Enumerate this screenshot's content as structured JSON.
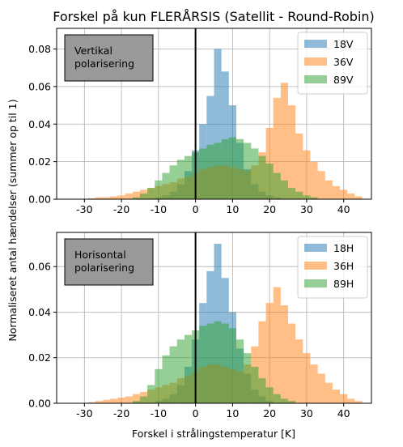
{
  "figure": {
    "title": "Forskel på kun FLERÅRSIS (Satellit - Round-Robin)",
    "shared_ylabel": "Normaliseret antal hændelser (summer op til 1)",
    "shared_xlabel": "Forskel i strålingstemperatur [K]"
  },
  "colors": {
    "c1": "#1f77b4",
    "c2": "#ff7f0e",
    "c3": "#2ca02c",
    "bar_alpha": 0.5,
    "annotation_box": "#999999"
  },
  "chart_data": [
    {
      "type": "bar",
      "histogram": true,
      "annotation": [
        "Vertikal",
        "polarisering"
      ],
      "legend_position": "top-right",
      "grid": true,
      "xlim": [
        -37.5,
        47.5
      ],
      "ylim": [
        0,
        0.091
      ],
      "xticks": [
        -30,
        -20,
        -10,
        0,
        10,
        20,
        30,
        40
      ],
      "yticks": [
        0.0,
        0.02,
        0.04,
        0.06,
        0.08
      ],
      "ytick_labels": [
        "0.00",
        "0.02",
        "0.04",
        "0.06",
        "0.08"
      ],
      "vline_x": 0,
      "bins": [
        -35,
        -33,
        -31,
        -29,
        -27,
        -25,
        -23,
        -21,
        -19,
        -17,
        -15,
        -13,
        -11,
        -9,
        -7,
        -5,
        -3,
        -1,
        1,
        3,
        5,
        7,
        9,
        11,
        13,
        15,
        17,
        19,
        21,
        23,
        25,
        27,
        29,
        31,
        33,
        35,
        37,
        39,
        41,
        43
      ],
      "bin_width": 2,
      "series": [
        {
          "name": "18V",
          "color": "#1f77b4",
          "values": [
            0,
            0,
            0,
            0,
            0,
            0,
            0,
            0,
            0,
            0,
            0,
            0,
            0.001,
            0.002,
            0.004,
            0.008,
            0.015,
            0.026,
            0.04,
            0.055,
            0.08,
            0.068,
            0.05,
            0.03,
            0.016,
            0.008,
            0.004,
            0.002,
            0.001,
            0,
            0,
            0,
            0,
            0,
            0,
            0,
            0,
            0,
            0,
            0
          ]
        },
        {
          "name": "36V",
          "color": "#ff7f0e",
          "values": [
            0,
            0,
            0,
            0.0005,
            0.001,
            0.001,
            0.0015,
            0.002,
            0.003,
            0.004,
            0.005,
            0.006,
            0.007,
            0.008,
            0.009,
            0.011,
            0.012,
            0.014,
            0.016,
            0.017,
            0.018,
            0.018,
            0.017,
            0.016,
            0.015,
            0.018,
            0.025,
            0.038,
            0.054,
            0.062,
            0.05,
            0.035,
            0.026,
            0.02,
            0.015,
            0.01,
            0.007,
            0.005,
            0.003,
            0.0015
          ]
        },
        {
          "name": "89V",
          "color": "#2ca02c",
          "values": [
            0,
            0,
            0,
            0,
            0,
            0,
            0,
            0,
            0,
            0.001,
            0.003,
            0.006,
            0.01,
            0.014,
            0.018,
            0.021,
            0.023,
            0.025,
            0.027,
            0.029,
            0.03,
            0.032,
            0.033,
            0.032,
            0.03,
            0.027,
            0.023,
            0.019,
            0.014,
            0.01,
            0.006,
            0.004,
            0.002,
            0.001,
            0,
            0,
            0,
            0,
            0,
            0
          ]
        }
      ]
    },
    {
      "type": "bar",
      "histogram": true,
      "annotation": [
        "Horisontal",
        "polarisering"
      ],
      "legend_position": "top-right",
      "grid": true,
      "xlim": [
        -37.5,
        47.5
      ],
      "ylim": [
        0,
        0.075
      ],
      "xticks": [
        -30,
        -20,
        -10,
        0,
        10,
        20,
        30,
        40
      ],
      "yticks": [
        0.0,
        0.02,
        0.04,
        0.06
      ],
      "ytick_labels": [
        "0.00",
        "0.02",
        "0.04",
        "0.06"
      ],
      "vline_x": 0,
      "bins": [
        -35,
        -33,
        -31,
        -29,
        -27,
        -25,
        -23,
        -21,
        -19,
        -17,
        -15,
        -13,
        -11,
        -9,
        -7,
        -5,
        -3,
        -1,
        1,
        3,
        5,
        7,
        9,
        11,
        13,
        15,
        17,
        19,
        21,
        23,
        25,
        27,
        29,
        31,
        33,
        35,
        37,
        39,
        41,
        43
      ],
      "bin_width": 2,
      "series": [
        {
          "name": "18H",
          "color": "#1f77b4",
          "values": [
            0,
            0,
            0,
            0,
            0,
            0,
            0,
            0,
            0,
            0,
            0,
            0,
            0.001,
            0.002,
            0.004,
            0.008,
            0.016,
            0.028,
            0.044,
            0.058,
            0.07,
            0.055,
            0.04,
            0.024,
            0.013,
            0.006,
            0.003,
            0.001,
            0,
            0,
            0,
            0,
            0,
            0,
            0,
            0,
            0,
            0,
            0,
            0
          ]
        },
        {
          "name": "36H",
          "color": "#ff7f0e",
          "values": [
            0,
            0,
            0,
            0.0005,
            0.001,
            0.0015,
            0.002,
            0.0025,
            0.003,
            0.004,
            0.005,
            0.006,
            0.007,
            0.008,
            0.009,
            0.011,
            0.012,
            0.014,
            0.016,
            0.017,
            0.017,
            0.016,
            0.015,
            0.014,
            0.017,
            0.025,
            0.036,
            0.044,
            0.051,
            0.043,
            0.035,
            0.028,
            0.022,
            0.017,
            0.013,
            0.009,
            0.006,
            0.004,
            0.002,
            0.001
          ]
        },
        {
          "name": "89H",
          "color": "#2ca02c",
          "values": [
            0,
            0,
            0,
            0,
            0,
            0,
            0,
            0,
            0,
            0.001,
            0.003,
            0.008,
            0.015,
            0.021,
            0.025,
            0.028,
            0.03,
            0.032,
            0.034,
            0.035,
            0.036,
            0.035,
            0.033,
            0.028,
            0.022,
            0.016,
            0.011,
            0.007,
            0.004,
            0.002,
            0.001,
            0,
            0,
            0,
            0,
            0,
            0,
            0,
            0,
            0
          ]
        }
      ]
    }
  ]
}
